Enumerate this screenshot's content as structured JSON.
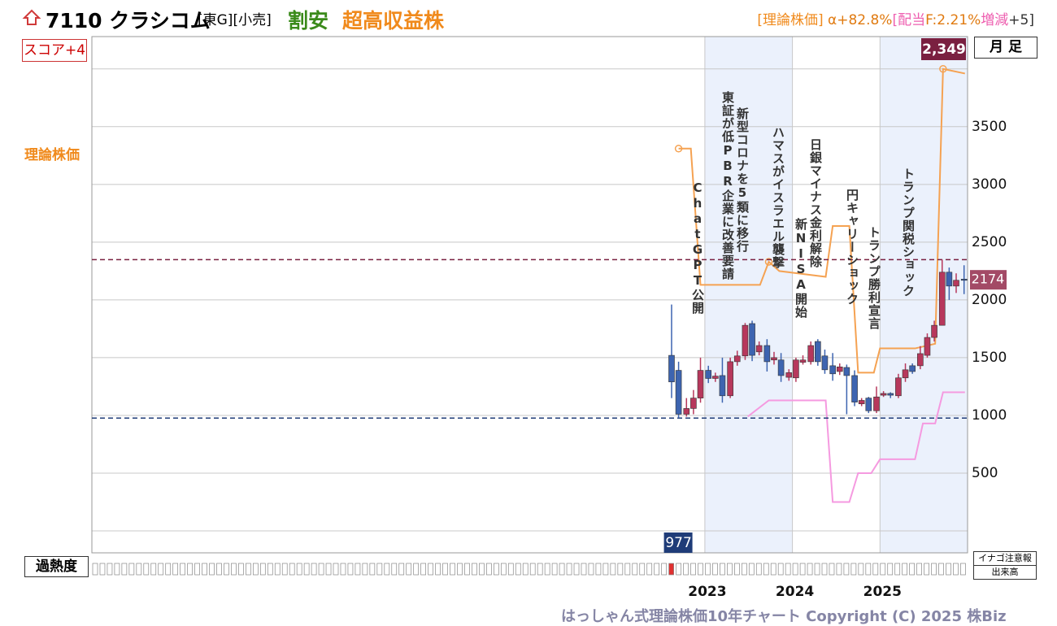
{
  "header": {
    "code": "7110 クラシコム",
    "tags": "[東G][小売]",
    "tag1": "割安",
    "tag2": "超高収益株",
    "right": [
      {
        "text": "[理論株価]",
        "color": "#f08a1c"
      },
      {
        "text": " α+82.8%",
        "color": "#e07a10"
      },
      {
        "text": "[配当",
        "color": "#ee5fb0"
      },
      {
        "text": "F:2.21%",
        "color": "#e07a10"
      },
      {
        "text": "増減",
        "color": "#ee5fb0"
      },
      {
        "text": "+5]",
        "color": "#333333"
      }
    ]
  },
  "chart_data": {
    "type": "candlestick",
    "score": "スコア+4",
    "period": "月 足",
    "theory_label": "理論株価",
    "xlim": [
      2016,
      2026
    ],
    "xticks": [
      2023,
      2024,
      2025
    ],
    "shaded": [
      [
        2023,
        2024
      ],
      [
        2025,
        2026
      ]
    ],
    "ylim": [
      -190,
      4280
    ],
    "yticks": [
      500,
      1000,
      1500,
      2000,
      2500,
      3000,
      3500
    ],
    "grid_extra": [
      0,
      4000
    ],
    "grid": true,
    "up_color": "#b7385c",
    "down_color": "#3d64b0",
    "candles": {
      "x": [
        2022.62,
        2022.7,
        2022.79,
        2022.87,
        2022.95,
        2023.04,
        2023.12,
        2023.2,
        2023.29,
        2023.37,
        2023.46,
        2023.54,
        2023.62,
        2023.71,
        2023.79,
        2023.87,
        2023.96,
        2024.04,
        2024.12,
        2024.21,
        2024.29,
        2024.37,
        2024.46,
        2024.54,
        2024.62,
        2024.71,
        2024.79,
        2024.87,
        2024.96,
        2025.04,
        2025.12,
        2025.21,
        2025.29,
        2025.37,
        2025.46,
        2025.54,
        2025.62,
        2025.71,
        2025.79,
        2025.87,
        2025.96
      ],
      "open": [
        1520,
        1390,
        1010,
        1060,
        1150,
        1390,
        1320,
        1345,
        1170,
        1465,
        1515,
        1795,
        1550,
        1605,
        1480,
        1480,
        1330,
        1325,
        1460,
        1465,
        1640,
        1515,
        1430,
        1380,
        1415,
        1345,
        1100,
        1150,
        1040,
        1175,
        1190,
        1170,
        1325,
        1430,
        1430,
        1520,
        1675,
        1780,
        2240,
        2120,
        2180
      ],
      "high": [
        1960,
        1465,
        1150,
        1220,
        1500,
        1430,
        1370,
        1500,
        1500,
        1560,
        1800,
        1820,
        1640,
        1660,
        1550,
        1540,
        1400,
        1500,
        1520,
        1640,
        1660,
        1570,
        1540,
        1450,
        1440,
        1390,
        1150,
        1160,
        1250,
        1210,
        1200,
        1360,
        1450,
        1450,
        1600,
        1710,
        1820,
        2349,
        2280,
        2230,
        2300
      ],
      "low": [
        1150,
        977,
        990,
        1010,
        1110,
        1280,
        1290,
        1110,
        1150,
        1430,
        1480,
        1470,
        1520,
        1380,
        1440,
        1290,
        1300,
        1290,
        1440,
        1440,
        1430,
        1360,
        1300,
        1350,
        1010,
        1080,
        1080,
        1020,
        1020,
        1160,
        1150,
        1150,
        1290,
        1360,
        1400,
        1500,
        1640,
        1780,
        2000,
        2060,
        2050
      ],
      "close": [
        1290,
        1010,
        1060,
        1150,
        1390,
        1320,
        1340,
        1170,
        1465,
        1515,
        1780,
        1520,
        1605,
        1465,
        1500,
        1345,
        1370,
        1480,
        1480,
        1605,
        1465,
        1395,
        1360,
        1420,
        1345,
        1115,
        1130,
        1040,
        1160,
        1190,
        1175,
        1325,
        1395,
        1380,
        1535,
        1675,
        1780,
        2240,
        2120,
        2170,
        2174
      ]
    },
    "theory": {
      "color": "#f5a252",
      "x": [
        2022.7,
        2022.84,
        2022.95,
        2023.63,
        2023.73,
        2023.85,
        2024.38,
        2024.46,
        2024.65,
        2024.75,
        2024.93,
        2025.0,
        2025.4,
        2025.63,
        2025.72,
        2025.97
      ],
      "values": [
        3310,
        3310,
        2130,
        2130,
        2330,
        2250,
        2200,
        2640,
        2640,
        1370,
        1370,
        1580,
        1580,
        1620,
        4000,
        3960
      ]
    },
    "pink": {
      "color": "#f59ae0",
      "x": [
        2023.49,
        2023.73,
        2024.38,
        2024.46,
        2024.65,
        2024.75,
        2024.9,
        2025.0,
        2025.4,
        2025.49,
        2025.63,
        2025.72,
        2025.97
      ],
      "values": [
        990,
        1130,
        1130,
        250,
        250,
        500,
        500,
        620,
        620,
        930,
        930,
        1200,
        1200
      ]
    },
    "max_line": {
      "value": 2349,
      "label": "2,349",
      "color": "#7a2040"
    },
    "min_line": {
      "value": 977,
      "color": "#1f3c78"
    },
    "last_price": {
      "value": 2174,
      "color": "#a34a66"
    },
    "events": [
      "ChatGPT公開",
      "東証が低PBR企業に改善要請",
      "新型コロナを5類に移行",
      "ハマスがイスラエル襲撃",
      "新NISA開始",
      "日銀マイナス金利解除",
      "円キャリーショック",
      "トランプ勝利宣言",
      "トランプ関税ショック"
    ],
    "overheat_label": "過熱度",
    "inago": "イナゴ注意報",
    "volume": "出来高"
  },
  "footer": "はっしゃん式理論株価10年チャート Copyright (C) 2025 株Biz"
}
